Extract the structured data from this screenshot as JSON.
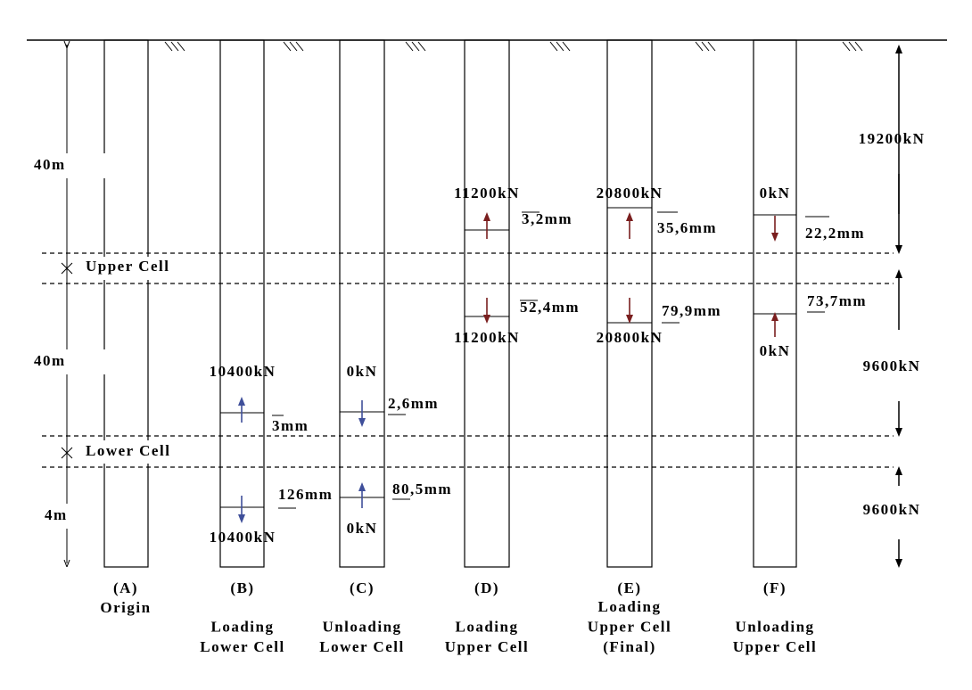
{
  "dimensions": {
    "upper": "40m",
    "middle": "40m",
    "lower": "4m"
  },
  "cells": {
    "upper": "Upper Cell",
    "lower": "Lower Cell"
  },
  "loads": [
    "19200kN",
    "9600kN",
    "9600kN"
  ],
  "stages": [
    {
      "id": "(A)",
      "caption": [
        "Origin"
      ]
    },
    {
      "id": "(B)",
      "caption": [
        "Loading",
        "Lower Cell"
      ],
      "top_load": "10400kN",
      "top_disp": "3mm",
      "bottom_disp": "126mm",
      "bottom_load": "10400kN"
    },
    {
      "id": "(C)",
      "caption": [
        "Unloading",
        "Lower Cell"
      ],
      "top_load": "0kN",
      "top_disp": "2,6mm",
      "bottom_disp": "80,5mm",
      "bottom_load": "0kN"
    },
    {
      "id": "(D)",
      "caption": [
        "Loading",
        "Upper Cell"
      ],
      "top_load": "11200kN",
      "top_disp": "3,2mm",
      "bottom_disp": "52,4mm",
      "bottom_load": "11200kN"
    },
    {
      "id": "(E)",
      "caption": [
        "Loading",
        "Upper Cell",
        "(Final)"
      ],
      "top_load": "20800kN",
      "top_disp": "35,6mm",
      "bottom_disp": "79,9mm",
      "bottom_load": "20800kN"
    },
    {
      "id": "(F)",
      "caption": [
        "Unloading",
        "Upper Cell"
      ],
      "top_load": "0kN",
      "top_disp": "22,2mm",
      "bottom_disp": "73,7mm",
      "bottom_load": "0kN"
    }
  ]
}
